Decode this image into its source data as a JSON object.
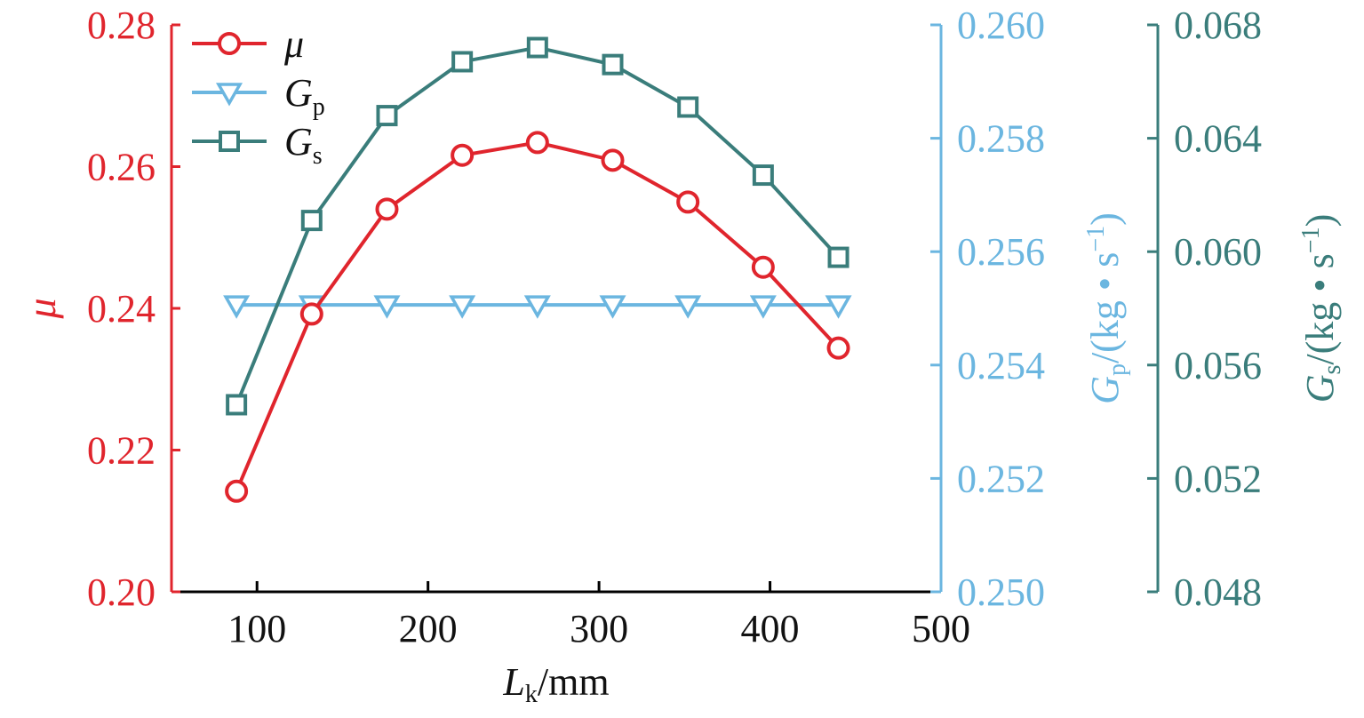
{
  "chart_data": {
    "type": "line",
    "title": "",
    "xlabel": {
      "main": "L",
      "sub": "k",
      "unit": "/mm"
    },
    "xlim": [
      50,
      500
    ],
    "xticks": [
      100,
      200,
      300,
      400,
      500
    ],
    "x": [
      88,
      132,
      176,
      220,
      264,
      308,
      352,
      396,
      440
    ],
    "axes": [
      {
        "id": "mu",
        "label": "μ",
        "color": "#e0252d",
        "ylim": [
          0.2,
          0.28
        ],
        "ticks": [
          "0.20",
          "0.22",
          "0.24",
          "0.26",
          "0.28"
        ]
      },
      {
        "id": "gp",
        "label": {
          "main": "G",
          "sub": "p",
          "unit": "/(kg • s",
          "sup": "−1",
          "close": ")"
        },
        "color": "#6bb6e0",
        "ylim": [
          0.25,
          0.26
        ],
        "ticks": [
          "0.250",
          "0.252",
          "0.254",
          "0.256",
          "0.258",
          "0.260"
        ]
      },
      {
        "id": "gs",
        "label": {
          "main": "G",
          "sub": "s",
          "unit": "/(kg • s",
          "sup": "−1",
          "close": ")"
        },
        "color": "#3a7d7b",
        "ylim": [
          0.048,
          0.068
        ],
        "ticks": [
          "0.048",
          "0.052",
          "0.056",
          "0.060",
          "0.064",
          "0.068"
        ]
      }
    ],
    "series": [
      {
        "name": "μ",
        "sub": "",
        "axis": "mu",
        "marker": "circle",
        "color": "#e0252d",
        "values": [
          0.2142,
          0.2392,
          0.254,
          0.2616,
          0.2634,
          0.2609,
          0.255,
          0.2458,
          0.2344
        ]
      },
      {
        "name": "G",
        "sub": "p",
        "axis": "gp",
        "marker": "triangle-down",
        "color": "#6bb6e0",
        "values": [
          0.25506,
          0.25506,
          0.25506,
          0.25506,
          0.25506,
          0.25506,
          0.25506,
          0.25506,
          0.25506
        ]
      },
      {
        "name": "G",
        "sub": "s",
        "axis": "gs",
        "marker": "square",
        "color": "#3a7d7b",
        "values": [
          0.0546,
          0.0611,
          0.0648,
          0.0667,
          0.0672,
          0.0666,
          0.0651,
          0.0627,
          0.0598
        ]
      }
    ],
    "legend": "top-left",
    "grid": false
  }
}
